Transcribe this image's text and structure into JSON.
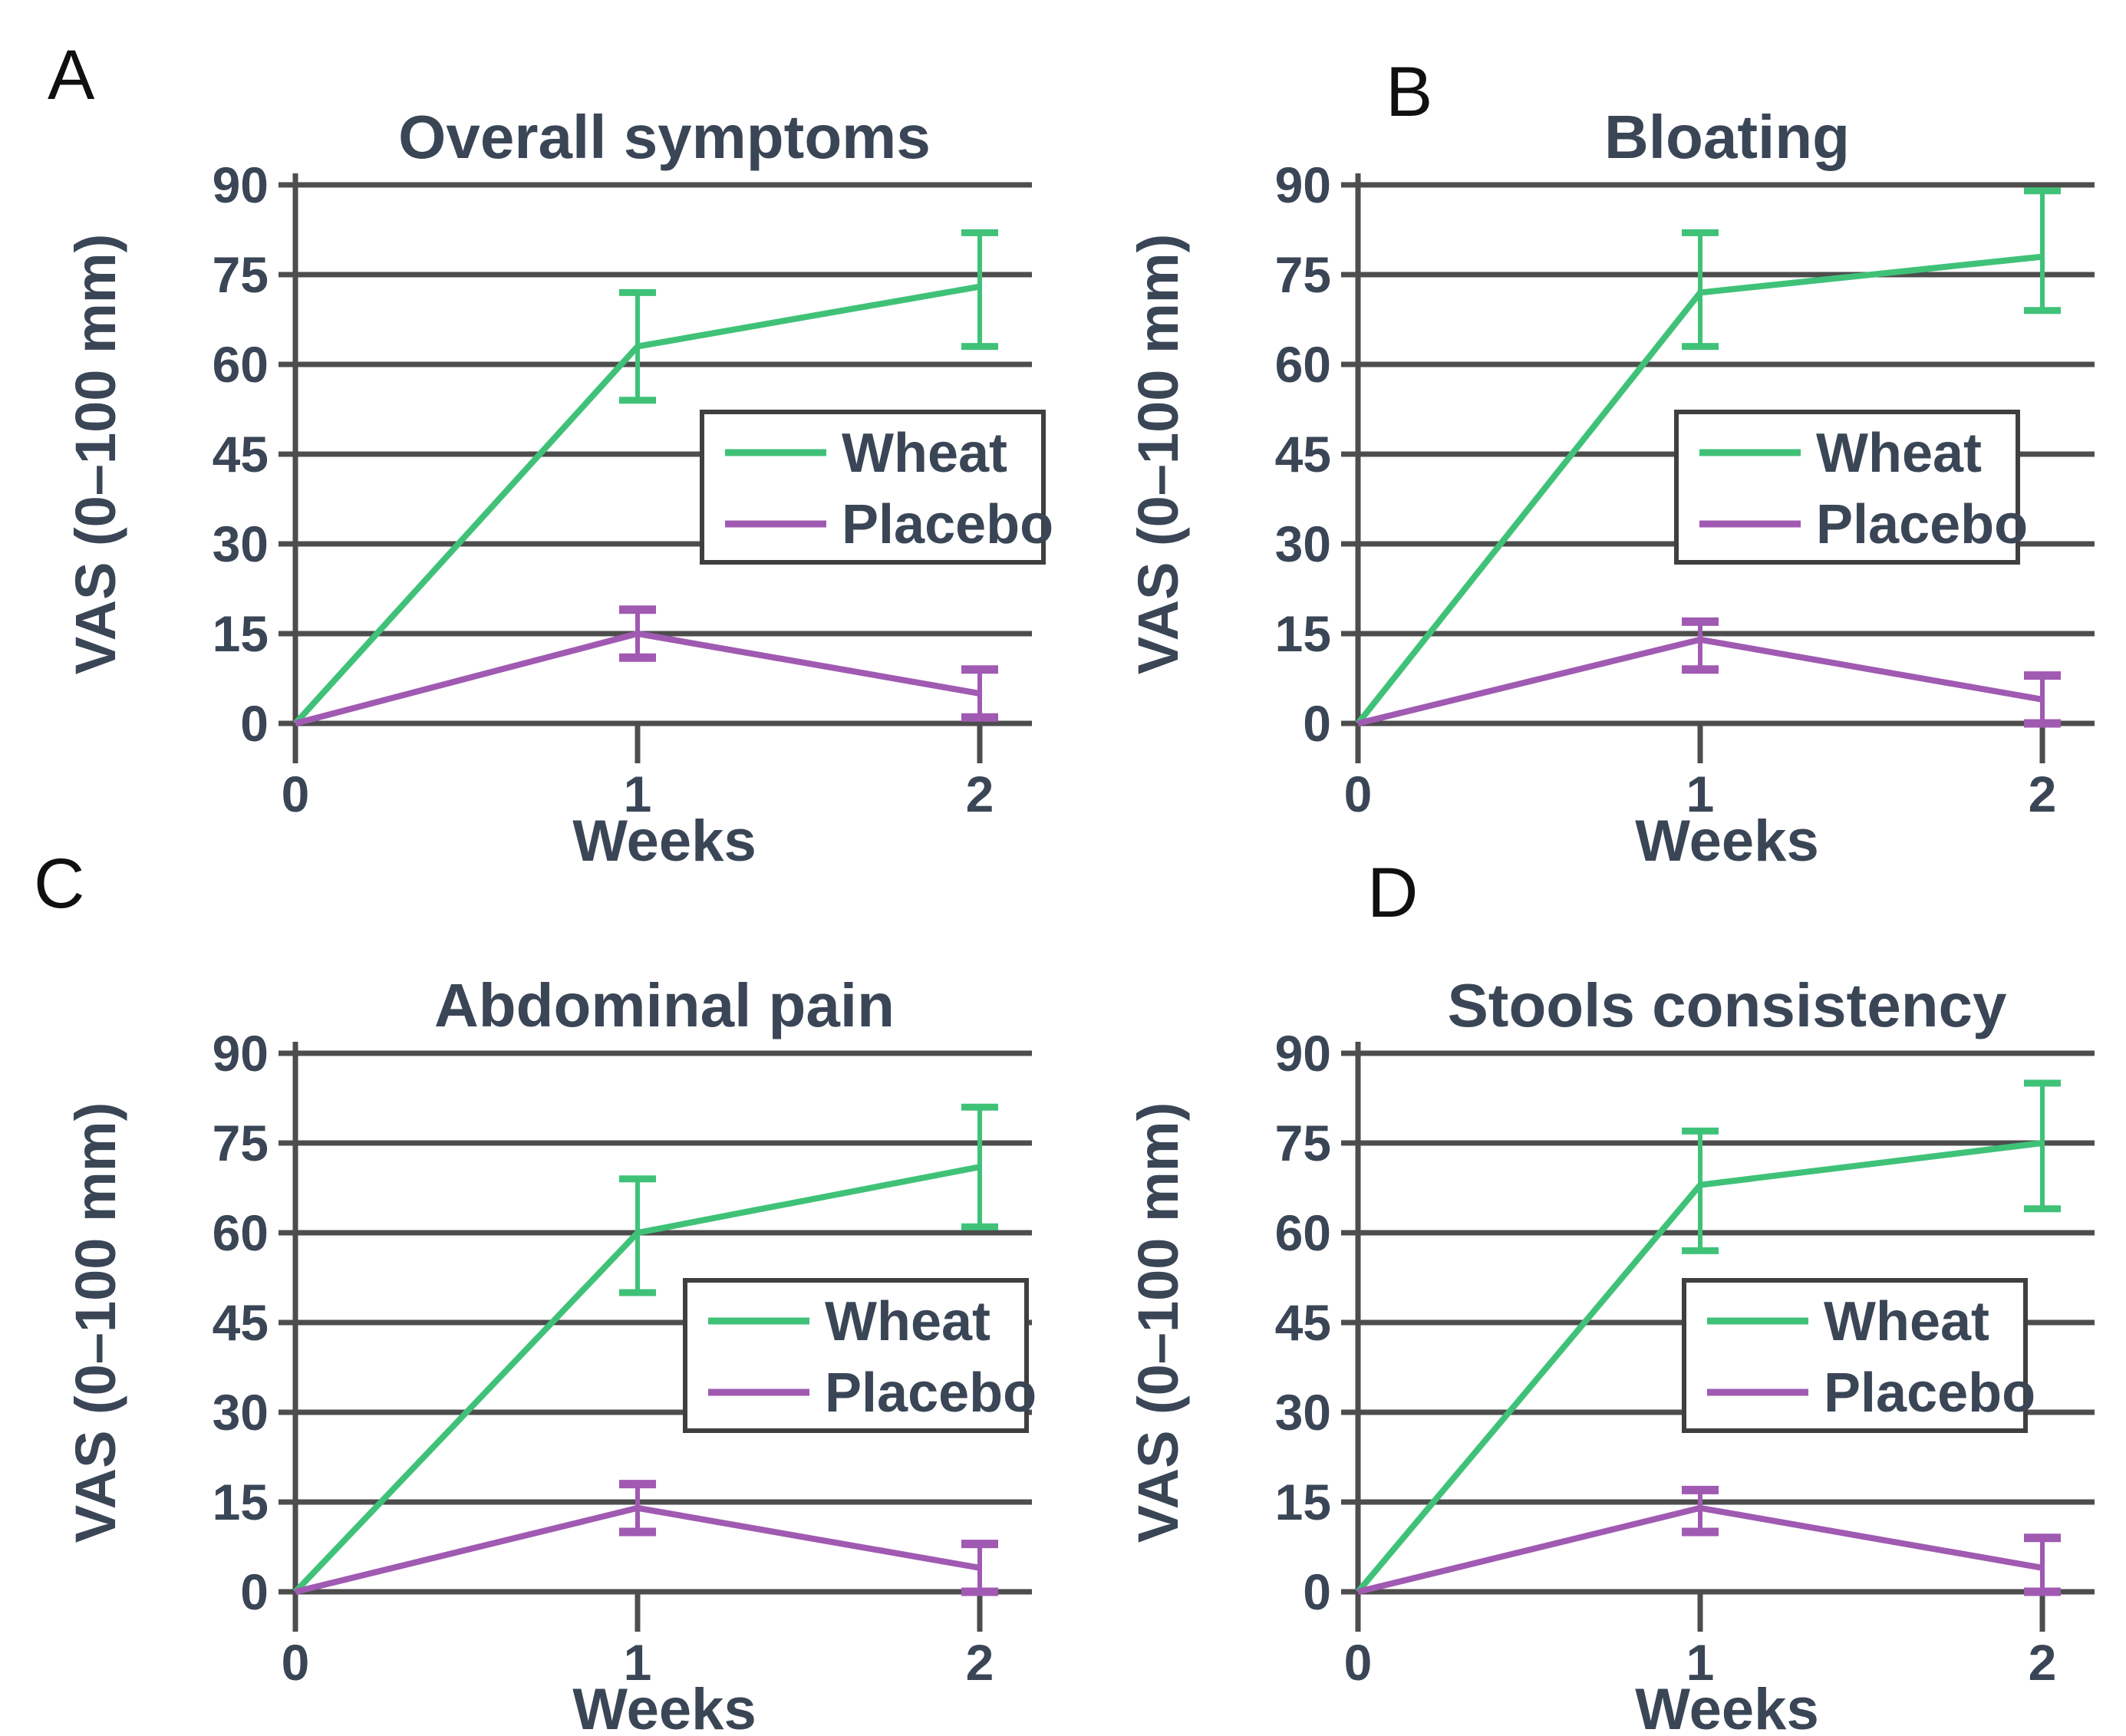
{
  "figure": {
    "panel_letters": [
      "A",
      "B",
      "C",
      "D"
    ],
    "colors": {
      "wheat": "#3fc278",
      "placebo": "#a05ab2",
      "grid": "#4d4d4d",
      "text": "#3a4656",
      "letter": "#101010",
      "legend_border": "#3f3f3f",
      "background": "#ffffff"
    }
  },
  "chart_data": [
    {
      "panel_label": "A",
      "type": "line",
      "title": "Overall symptoms",
      "xlabel": "Weeks",
      "ylabel": "VAS (0–100 mm)",
      "x": [
        0,
        1,
        2
      ],
      "xtick_labels": [
        "0",
        "1",
        "2"
      ],
      "yticks": [
        0,
        15,
        30,
        45,
        60,
        75,
        90
      ],
      "ylim": [
        0,
        90
      ],
      "grid": true,
      "legend": {
        "position": "center-right",
        "entries": [
          "Wheat",
          "Placebo"
        ]
      },
      "series": [
        {
          "name": "Wheat",
          "color": "#3fc278",
          "values": [
            0,
            63,
            73
          ],
          "err_minus": [
            0,
            9,
            10
          ],
          "err_plus": [
            0,
            9,
            9
          ]
        },
        {
          "name": "Placebo",
          "color": "#a05ab2",
          "values": [
            0,
            15,
            5
          ],
          "err_minus": [
            0,
            4,
            4
          ],
          "err_plus": [
            0,
            4,
            4
          ]
        }
      ]
    },
    {
      "panel_label": "B",
      "type": "line",
      "title": "Bloating",
      "xlabel": "Weeks",
      "ylabel": "VAS (0–100 mm)",
      "x": [
        0,
        1,
        2
      ],
      "xtick_labels": [
        "0",
        "1",
        "2"
      ],
      "yticks": [
        0,
        15,
        30,
        45,
        60,
        75,
        90
      ],
      "ylim": [
        0,
        90
      ],
      "grid": true,
      "legend": {
        "position": "center-right",
        "entries": [
          "Wheat",
          "Placebo"
        ]
      },
      "series": [
        {
          "name": "Wheat",
          "color": "#3fc278",
          "values": [
            0,
            72,
            78
          ],
          "err_minus": [
            0,
            9,
            9
          ],
          "err_plus": [
            0,
            10,
            11
          ]
        },
        {
          "name": "Placebo",
          "color": "#a05ab2",
          "values": [
            0,
            14,
            4
          ],
          "err_minus": [
            0,
            5,
            4
          ],
          "err_plus": [
            0,
            3,
            4
          ]
        }
      ]
    },
    {
      "panel_label": "C",
      "type": "line",
      "title": "Abdominal pain",
      "xlabel": "Weeks",
      "ylabel": "VAS (0–100 mm)",
      "x": [
        0,
        1,
        2
      ],
      "xtick_labels": [
        "0",
        "1",
        "2"
      ],
      "yticks": [
        0,
        15,
        30,
        45,
        60,
        75,
        90
      ],
      "ylim": [
        0,
        90
      ],
      "grid": true,
      "legend": {
        "position": "center-right",
        "entries": [
          "Wheat",
          "Placebo"
        ]
      },
      "series": [
        {
          "name": "Wheat",
          "color": "#3fc278",
          "values": [
            0,
            60,
            71
          ],
          "err_minus": [
            0,
            10,
            10
          ],
          "err_plus": [
            0,
            9,
            10
          ]
        },
        {
          "name": "Placebo",
          "color": "#a05ab2",
          "values": [
            0,
            14,
            4
          ],
          "err_minus": [
            0,
            4,
            4
          ],
          "err_plus": [
            0,
            4,
            4
          ]
        }
      ]
    },
    {
      "panel_label": "D",
      "type": "line",
      "title": "Stools consistency",
      "xlabel": "Weeks",
      "ylabel": "VAS (0–100 mm)",
      "x": [
        0,
        1,
        2
      ],
      "xtick_labels": [
        "0",
        "1",
        "2"
      ],
      "yticks": [
        0,
        15,
        30,
        45,
        60,
        75,
        90
      ],
      "ylim": [
        0,
        90
      ],
      "grid": true,
      "legend": {
        "position": "center-right",
        "entries": [
          "Wheat",
          "Placebo"
        ]
      },
      "series": [
        {
          "name": "Wheat",
          "color": "#3fc278",
          "values": [
            0,
            68,
            75
          ],
          "err_minus": [
            0,
            11,
            11
          ],
          "err_plus": [
            0,
            9,
            10
          ]
        },
        {
          "name": "Placebo",
          "color": "#a05ab2",
          "values": [
            0,
            14,
            4
          ],
          "err_minus": [
            0,
            4,
            4
          ],
          "err_plus": [
            0,
            3,
            5
          ]
        }
      ]
    }
  ]
}
